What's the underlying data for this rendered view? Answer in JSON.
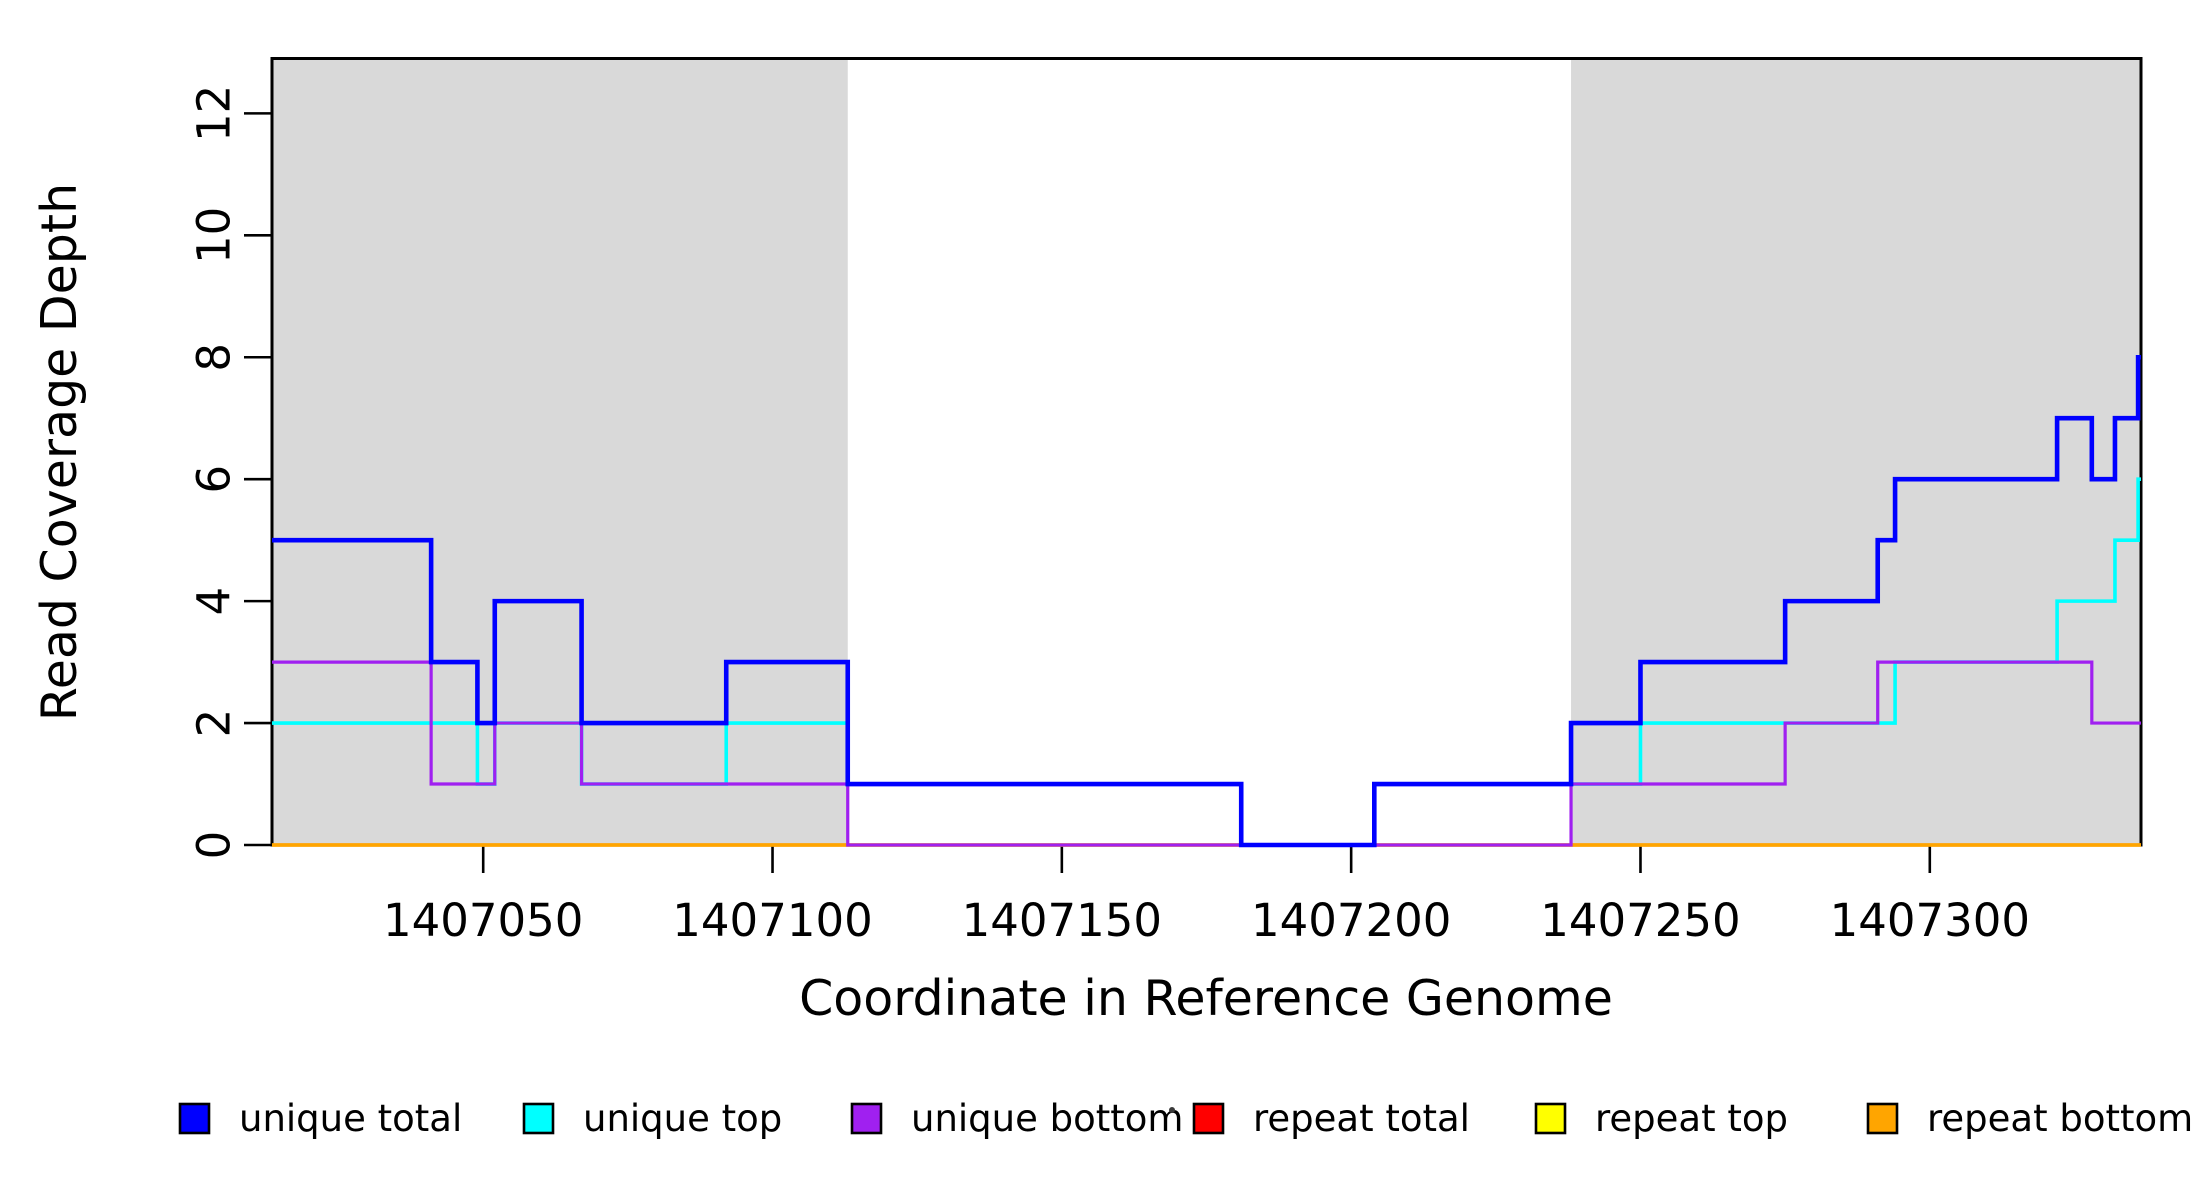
{
  "figure": {
    "x_axis": {
      "title": "Coordinate in Reference Genome",
      "tick_values": [
        1407050,
        1407100,
        1407150,
        1407200,
        1407250,
        1407300
      ],
      "tick_labels": [
        "1407050",
        "1407100",
        "1407150",
        "1407200",
        "1407250",
        "1407300"
      ]
    },
    "y_axis": {
      "title": "Read Coverage Depth",
      "tick_values": [
        0,
        2,
        4,
        6,
        8,
        10,
        12
      ],
      "tick_labels": [
        "0",
        "2",
        "4",
        "6",
        "8",
        "10",
        "12"
      ]
    },
    "legend": {
      "entries": [
        {
          "label": "unique total",
          "color": "#0000FF"
        },
        {
          "label": "unique top",
          "color": "#00FFFF"
        },
        {
          "label": "unique bottom",
          "color": "#A020F0"
        },
        {
          "label": "repeat total",
          "color": "#FF0000"
        },
        {
          "label": "repeat top",
          "color": "#FFFF00"
        },
        {
          "label": "repeat bottom",
          "color": "#FFA500"
        }
      ]
    }
  },
  "chart_data": {
    "type": "line",
    "step_mode": "after",
    "title": "",
    "xlabel": "Coordinate in Reference Genome",
    "ylabel": "Read Coverage Depth",
    "xlim": [
      1407013.5,
      1407336.5
    ],
    "ylim": [
      0,
      12.9
    ],
    "grid": false,
    "legend_position": "bottom",
    "plot_background": "#FFFFFF",
    "shaded_region_color": "#D9D9D9",
    "shaded_regions": [
      {
        "x0": 1407013.5,
        "x1": 1407113
      },
      {
        "x0": 1407238,
        "x1": 1407336.5
      }
    ],
    "series": [
      {
        "name": "repeat total",
        "color": "#FF0000",
        "width": 3.2,
        "points": [
          [
            1407013.5,
            0
          ]
        ]
      },
      {
        "name": "repeat top",
        "color": "#FFFF00",
        "width": 3.2,
        "points": [
          [
            1407013.5,
            0
          ]
        ]
      },
      {
        "name": "repeat bottom",
        "color": "#FFA500",
        "width": 3.4,
        "points": [
          [
            1407013.5,
            0
          ]
        ]
      },
      {
        "name": "unique top",
        "color": "#00FFFF",
        "width": 3.6,
        "points": [
          [
            1407013.5,
            2
          ],
          [
            1407049,
            1
          ],
          [
            1407052,
            2
          ],
          [
            1407067,
            1
          ],
          [
            1407092,
            2
          ],
          [
            1407113,
            1
          ],
          [
            1407181,
            0
          ],
          [
            1407204,
            1
          ],
          [
            1407250,
            2
          ],
          [
            1407294,
            3
          ],
          [
            1407322,
            4
          ],
          [
            1407332,
            5
          ],
          [
            1407336,
            6
          ]
        ]
      },
      {
        "name": "unique bottom",
        "color": "#A020F0",
        "width": 3.2,
        "points": [
          [
            1407013.5,
            3
          ],
          [
            1407041,
            1
          ],
          [
            1407052,
            2
          ],
          [
            1407067,
            1
          ],
          [
            1407113,
            0
          ],
          [
            1407238,
            1
          ],
          [
            1407275,
            2
          ],
          [
            1407291,
            3
          ],
          [
            1407328,
            2
          ]
        ]
      },
      {
        "name": "unique total",
        "color": "#0000FF",
        "width": 4.6,
        "points": [
          [
            1407013.5,
            5
          ],
          [
            1407041,
            3
          ],
          [
            1407049,
            2
          ],
          [
            1407052,
            4
          ],
          [
            1407067,
            2
          ],
          [
            1407092,
            3
          ],
          [
            1407113,
            1
          ],
          [
            1407181,
            0
          ],
          [
            1407204,
            1
          ],
          [
            1407238,
            2
          ],
          [
            1407250,
            3
          ],
          [
            1407275,
            4
          ],
          [
            1407291,
            5
          ],
          [
            1407294,
            6
          ],
          [
            1407322,
            7
          ],
          [
            1407328,
            6
          ],
          [
            1407332,
            7
          ],
          [
            1407336,
            8
          ]
        ]
      }
    ]
  }
}
